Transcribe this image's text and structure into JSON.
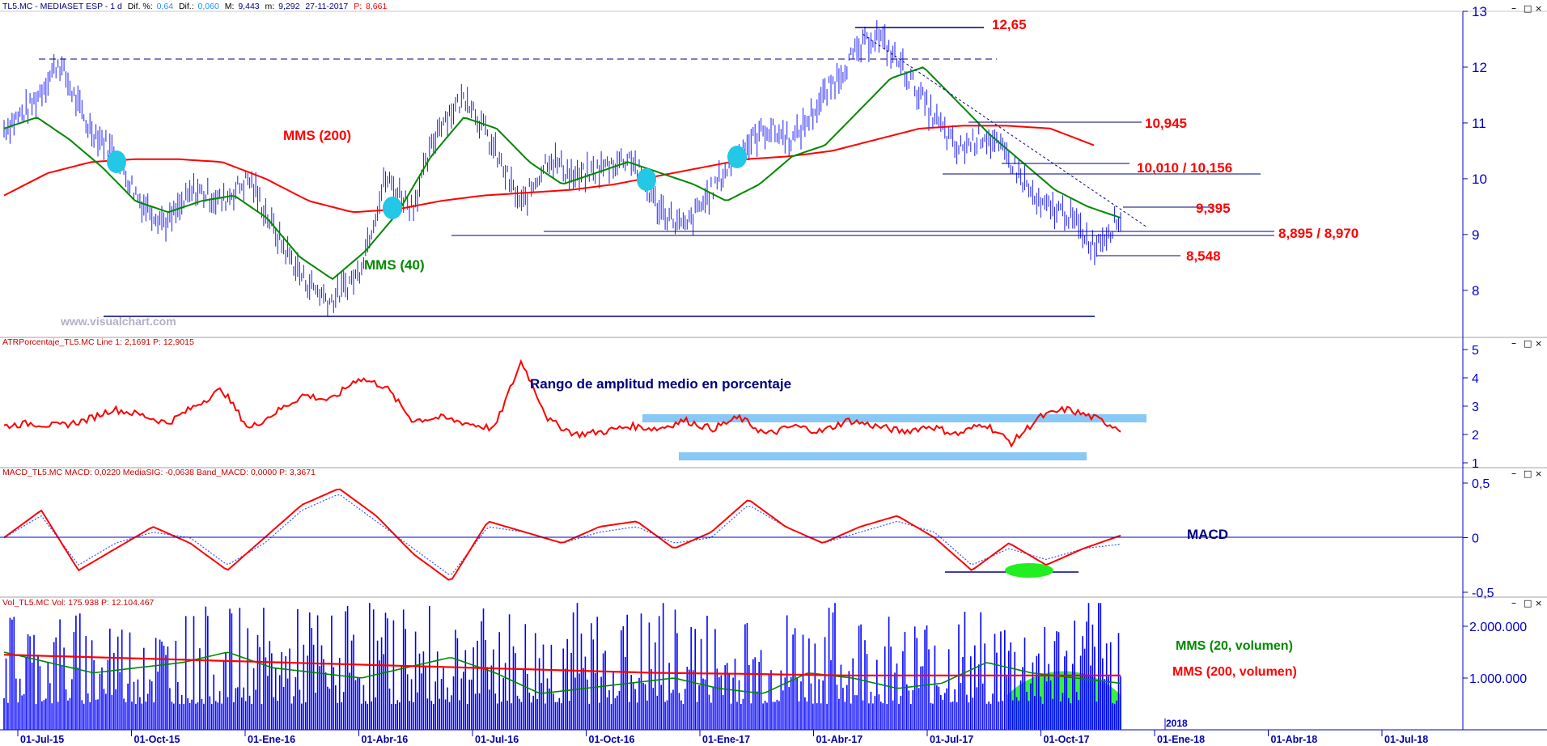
{
  "panels": {
    "price": {
      "header": {
        "symbol": "TL5.MC - MEDIASET ESP -  1 d",
        "fields": [
          {
            "label": "Dif. %:",
            "value": "0,64"
          },
          {
            "label": "Dif.:",
            "value": "0,060"
          },
          {
            "label": "M:",
            "value": "9,443"
          },
          {
            "label": "m:",
            "value": "9,292"
          },
          {
            "label": "",
            "value": "27-11-2017"
          },
          {
            "label": "P:",
            "value": "8,661"
          }
        ]
      },
      "watermark": "www.visualchart.com",
      "ma200_label": "MMS (200)",
      "ma40_label": "MMS (40)",
      "levels": [
        "12,65",
        "10,945",
        "10,010 / 10,156",
        "9,395",
        "8,895 / 8,970",
        "8,548"
      ]
    },
    "atr": {
      "header": "ATRPorcentaje_TL5.MC  Line 1: 2,1691  P: 12,9015",
      "annotation": "Rango de amplitud medio en porcentaje"
    },
    "macd": {
      "header": "MACD_TL5.MC  MACD: 0,0220  MediaSIG: -0,0638  Band_MACD: 0,0000  P: 3,3671",
      "annotation": "MACD"
    },
    "volume": {
      "header": "Vol_TL5.MC  Vol: 175.938  P: 12.104.467",
      "ma20_label": "MMS (20, volumen)",
      "ma200_label": "MMS (200, volumen)",
      "year_marker": "2018"
    }
  },
  "colors": {
    "axis": "#0000cc",
    "price": "#1a1aff",
    "ma200": "#ff0000",
    "ma40": "#008800",
    "annotation_red": "#ff0000",
    "annotation_green": "#008800",
    "annotation_navy": "#000080",
    "highlight_band": "#87c8f5",
    "cross_marker": "#22c8e6",
    "volume_bar": "#0000ff",
    "volume_zone": "#22ee22"
  },
  "chart_data": [
    {
      "type": "line",
      "name": "price",
      "x_ticks": [
        "01-Jul-15",
        "01-Oct-15",
        "01-Ene-16",
        "01-Abr-16",
        "01-Jul-16",
        "01-Oct-16",
        "01-Ene-17",
        "01-Abr-17",
        "01-Jul-17",
        "01-Oct-17",
        "01-Ene-18",
        "01-Abr-18",
        "01-Jul-18"
      ],
      "y_ticks": [
        "8",
        "9",
        "10",
        "11",
        "12",
        "13"
      ],
      "ylim": [
        7.2,
        13.0
      ],
      "series": [
        {
          "name": "MMS (200)",
          "values": [
            9.7,
            10.1,
            10.3,
            10.35,
            10.35,
            10.3,
            10.0,
            9.6,
            9.4,
            9.45,
            9.6,
            9.7,
            9.75,
            9.8,
            9.9,
            10.05,
            10.2,
            10.35,
            10.4,
            10.5,
            10.7,
            10.9,
            10.95,
            10.95,
            10.9,
            10.6
          ]
        },
        {
          "name": "MMS (40)",
          "values": [
            10.9,
            11.1,
            10.7,
            10.2,
            9.6,
            9.4,
            9.6,
            9.7,
            9.3,
            8.6,
            8.2,
            8.7,
            9.4,
            10.4,
            11.1,
            10.9,
            10.3,
            9.9,
            10.1,
            10.3,
            10.1,
            9.9,
            9.6,
            9.9,
            10.4,
            10.6,
            11.2,
            11.8,
            12.0,
            11.4,
            10.8,
            10.3,
            9.8,
            9.5,
            9.3
          ]
        },
        {
          "name": "Precio",
          "values": [
            10.9,
            11.3,
            12.1,
            11.0,
            10.5,
            9.6,
            9.2,
            9.8,
            9.6,
            10.0,
            9.0,
            8.2,
            7.8,
            8.3,
            10.0,
            9.5,
            11.0,
            11.5,
            10.5,
            9.5,
            10.4,
            10.0,
            10.2,
            10.4,
            9.5,
            9.1,
            9.8,
            10.5,
            10.9,
            10.7,
            11.4,
            12.1,
            12.6,
            12.0,
            11.2,
            10.5,
            10.8,
            10.3,
            9.5,
            9.4,
            8.8,
            9.3
          ]
        }
      ],
      "levels": [
        12.65,
        10.945,
        10.156,
        10.01,
        9.395,
        8.97,
        8.895,
        8.548
      ]
    },
    {
      "type": "line",
      "name": "ATRPorcentaje",
      "y_ticks": [
        "1",
        "2",
        "3",
        "4",
        "5"
      ],
      "ylim": [
        1,
        5
      ],
      "series": [
        {
          "name": "Line 1",
          "values": [
            2.3,
            2.4,
            2.3,
            2.5,
            2.9,
            2.7,
            2.4,
            3.0,
            3.6,
            2.2,
            2.8,
            3.4,
            3.2,
            4.0,
            3.7,
            2.5,
            2.6,
            2.4,
            2.2,
            4.6,
            2.5,
            2.0,
            2.1,
            2.3,
            2.2,
            2.5,
            2.2,
            2.6,
            2.0,
            2.3,
            2.1,
            2.5,
            2.3,
            2.1,
            2.3,
            2.0,
            2.4,
            1.7,
            2.6,
            2.9,
            2.6,
            2.2
          ]
        }
      ]
    },
    {
      "type": "line",
      "name": "MACD",
      "y_ticks": [
        "0,5",
        "0",
        "-0,5"
      ],
      "ylim": [
        -0.5,
        0.5
      ],
      "series": [
        {
          "name": "MACD",
          "values": [
            0.0,
            0.25,
            -0.3,
            -0.1,
            0.1,
            -0.05,
            -0.3,
            0.0,
            0.3,
            0.45,
            0.2,
            -0.15,
            -0.4,
            0.15,
            0.05,
            -0.05,
            0.1,
            0.15,
            -0.1,
            0.05,
            0.35,
            0.1,
            -0.05,
            0.1,
            0.2,
            0.0,
            -0.3,
            -0.05,
            -0.25,
            -0.1,
            0.02
          ]
        },
        {
          "name": "MediaSIG",
          "values": [
            0.0,
            0.2,
            -0.25,
            -0.05,
            0.05,
            0.0,
            -0.25,
            -0.05,
            0.25,
            0.4,
            0.15,
            -0.1,
            -0.35,
            0.1,
            0.05,
            -0.05,
            0.05,
            0.1,
            -0.05,
            0.0,
            0.3,
            0.1,
            -0.05,
            0.05,
            0.15,
            0.05,
            -0.25,
            -0.1,
            -0.2,
            -0.1,
            -0.06
          ]
        }
      ]
    },
    {
      "type": "bar",
      "name": "Volumen",
      "y_ticks": [
        "1.000.000",
        "2.000.000"
      ],
      "ylim": [
        0,
        2500000
      ],
      "series": [
        {
          "name": "MMS (20, volumen)",
          "values": [
            1500000,
            1300000,
            1100000,
            1200000,
            1300000,
            1500000,
            1200000,
            1100000,
            1000000,
            1200000,
            1400000,
            1100000,
            700000,
            800000,
            900000,
            1000000,
            800000,
            700000,
            1100000,
            1000000,
            800000,
            900000,
            1300000,
            1100000,
            1000000,
            900000
          ]
        },
        {
          "name": "MMS (200, volumen)",
          "values": [
            1450000,
            1400000,
            1350000,
            1300000,
            1250000,
            1200000,
            1150000,
            1100000,
            1080000,
            1050000,
            1050000,
            1050000,
            1050000
          ]
        }
      ]
    }
  ]
}
